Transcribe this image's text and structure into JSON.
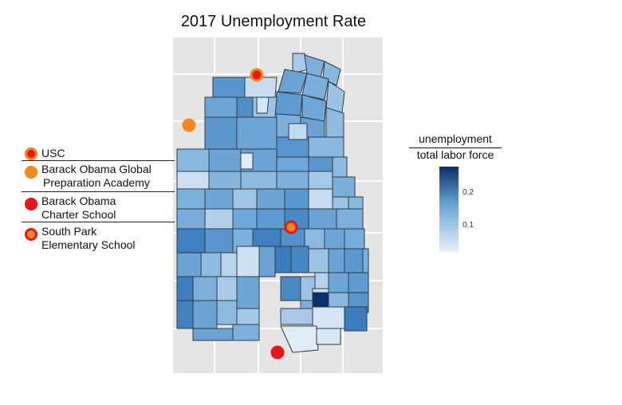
{
  "title": "2017 Unemployment Rate",
  "legend": {
    "items": [
      {
        "label_lines": [
          "USC"
        ],
        "fill": "#e8151b",
        "ring": "#f3891d"
      },
      {
        "label_lines": [
          "Barack Obama Global",
          "Preparation Academy"
        ],
        "fill": "#f3891d",
        "ring": "#f3891d"
      },
      {
        "label_lines": [
          "Barack Obama",
          "Charter School"
        ],
        "fill": "#e8151b",
        "ring": "#e8151b"
      },
      {
        "label_lines": [
          "South Park",
          "Elementary School"
        ],
        "fill": "#f3891d",
        "ring": "#e8151b"
      }
    ]
  },
  "scale": {
    "numerator": "unemployment",
    "denominator": "total labor force",
    "ticks": [
      "0.2",
      "0.1"
    ],
    "tick_values": [
      0.2,
      0.1
    ],
    "range": [
      0.02,
      0.28
    ],
    "colors": {
      "low": "#e8f1fb",
      "high": "#08306b"
    }
  },
  "colors": {
    "panel_bg": "#e5e5e5",
    "grid": "#ffffff",
    "tract_border": "#2f3a44",
    "orange": "#f3891d",
    "red": "#e8151b"
  }
}
